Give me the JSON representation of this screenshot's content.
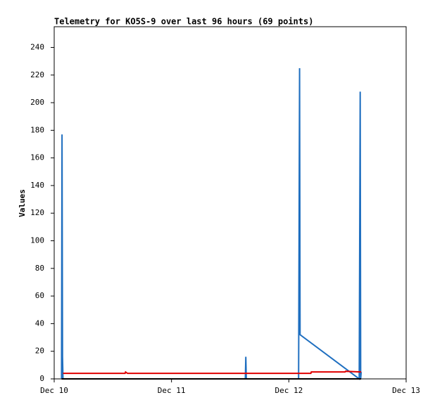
{
  "chart_data": {
    "type": "line",
    "title": "Telemetry for KO5S-9 over last 96 hours (69 points)",
    "y_label": "Values",
    "xlim": [
      0,
      72
    ],
    "xticks": [
      {
        "value": 0,
        "label": "Dec 10"
      },
      {
        "value": 24,
        "label": "Dec 11"
      },
      {
        "value": 48,
        "label": "Dec 12"
      },
      {
        "value": 72,
        "label": "Dec 13"
      }
    ],
    "ylim": [
      0,
      255
    ],
    "yticks": [
      0,
      20,
      40,
      60,
      80,
      100,
      120,
      140,
      160,
      180,
      200,
      220,
      240
    ],
    "series": [
      {
        "name": "blue",
        "color": "#1f6fc0",
        "x": [
          1.5,
          1.6,
          1.7,
          1.8,
          39.1,
          39.2,
          39.3,
          50.0,
          50.1,
          50.2,
          50.3,
          62.4,
          62.5,
          62.6,
          62.7,
          62.8
        ],
        "values": [
          0,
          177,
          16,
          0,
          0,
          16,
          0,
          0,
          112,
          225,
          32,
          0,
          104,
          208,
          0,
          5
        ]
      },
      {
        "name": "red",
        "color": "#e00000",
        "x": [
          1.8,
          14.5,
          14.6,
          15.0,
          52.5,
          52.6,
          59.5,
          59.6,
          62.8
        ],
        "values": [
          4,
          4,
          5,
          4,
          4,
          5,
          5,
          5.5,
          5
        ]
      },
      {
        "name": "black",
        "color": "#000000",
        "x": [
          1.5,
          62.8
        ],
        "values": [
          0,
          0
        ]
      }
    ]
  }
}
